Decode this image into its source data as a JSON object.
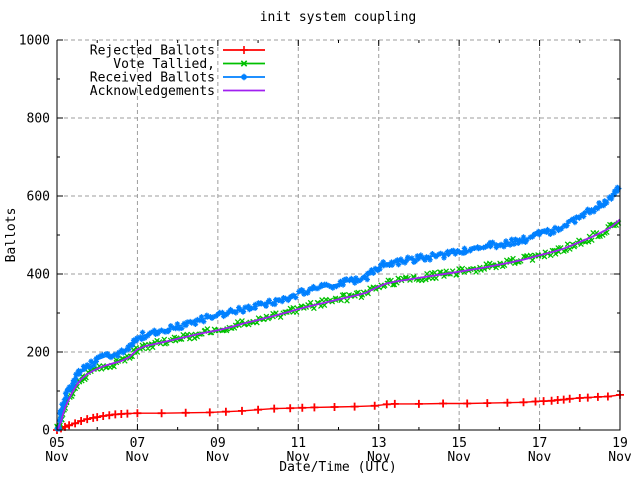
{
  "window": {
    "background": "#ffffff",
    "foreground": "#000000"
  },
  "chart_data": {
    "type": "line",
    "title": "init system coupling",
    "xlabel": "Date/Time (UTC)",
    "ylabel": "Ballots",
    "month": "Nov",
    "xlim_day_of_nov": [
      5,
      19
    ],
    "ylim": [
      0,
      1000
    ],
    "grid": true,
    "grid_color": "#9d9d9d",
    "axis_color": "#000000",
    "legend_position": "top-left-inside",
    "x_major_ticks": [
      {
        "day": 5,
        "label": "05",
        "month": "Nov"
      },
      {
        "day": 7,
        "label": "07",
        "month": "Nov"
      },
      {
        "day": 9,
        "label": "09",
        "month": "Nov"
      },
      {
        "day": 11,
        "label": "11",
        "month": "Nov"
      },
      {
        "day": 13,
        "label": "13",
        "month": "Nov"
      },
      {
        "day": 15,
        "label": "15",
        "month": "Nov"
      },
      {
        "day": 17,
        "label": "17",
        "month": "Nov"
      },
      {
        "day": 19,
        "label": "19",
        "month": "Nov"
      }
    ],
    "x_minor_days": [
      6,
      8,
      10,
      12,
      14,
      16,
      18
    ],
    "y_major_ticks": [
      0,
      200,
      400,
      600,
      800,
      1000
    ],
    "y_minor_ticks": [
      100,
      300,
      500,
      700,
      900
    ],
    "series": [
      {
        "name": "Rejected Ballots",
        "color": "#ff0000",
        "marker": "plus",
        "style": "line-markers",
        "points": [
          [
            5.0,
            0
          ],
          [
            5.1,
            4
          ],
          [
            5.2,
            8
          ],
          [
            5.3,
            12
          ],
          [
            5.45,
            17
          ],
          [
            5.6,
            23
          ],
          [
            5.75,
            28
          ],
          [
            5.9,
            31
          ],
          [
            6.0,
            33
          ],
          [
            6.15,
            36
          ],
          [
            6.3,
            38
          ],
          [
            6.45,
            40
          ],
          [
            6.6,
            41
          ],
          [
            6.75,
            42
          ],
          [
            7.0,
            43
          ],
          [
            7.6,
            43
          ],
          [
            8.2,
            44
          ],
          [
            8.8,
            45
          ],
          [
            9.2,
            47
          ],
          [
            9.6,
            49
          ],
          [
            10.0,
            52
          ],
          [
            10.4,
            55
          ],
          [
            10.8,
            56
          ],
          [
            11.1,
            57
          ],
          [
            11.4,
            58
          ],
          [
            11.9,
            59
          ],
          [
            12.4,
            60
          ],
          [
            12.9,
            62
          ],
          [
            13.2,
            66
          ],
          [
            13.4,
            67
          ],
          [
            14.0,
            67
          ],
          [
            14.6,
            68
          ],
          [
            15.2,
            68
          ],
          [
            15.7,
            69
          ],
          [
            16.2,
            70
          ],
          [
            16.6,
            71
          ],
          [
            16.9,
            73
          ],
          [
            17.1,
            74
          ],
          [
            17.3,
            75
          ],
          [
            17.45,
            77
          ],
          [
            17.6,
            78
          ],
          [
            17.75,
            80
          ],
          [
            18.0,
            82
          ],
          [
            18.2,
            83
          ],
          [
            18.45,
            85
          ],
          [
            18.7,
            86
          ],
          [
            19.0,
            90
          ]
        ]
      },
      {
        "name": "Vote Tallied,",
        "color": "#00c000",
        "marker": "cross",
        "style": "scatter-band",
        "points": [
          [
            5.0,
            0
          ],
          [
            5.05,
            8
          ],
          [
            5.1,
            22
          ],
          [
            5.15,
            40
          ],
          [
            5.2,
            57
          ],
          [
            5.3,
            80
          ],
          [
            5.4,
            100
          ],
          [
            5.5,
            117
          ],
          [
            5.6,
            130
          ],
          [
            5.75,
            143
          ],
          [
            5.9,
            152
          ],
          [
            6.0,
            157
          ],
          [
            6.2,
            165
          ],
          [
            6.4,
            171
          ],
          [
            6.6,
            177
          ],
          [
            6.8,
            187
          ],
          [
            6.9,
            197
          ],
          [
            7.0,
            207
          ],
          [
            7.2,
            215
          ],
          [
            7.5,
            222
          ],
          [
            7.8,
            229
          ],
          [
            8.0,
            234
          ],
          [
            8.3,
            241
          ],
          [
            8.6,
            248
          ],
          [
            9.0,
            256
          ],
          [
            9.3,
            263
          ],
          [
            9.6,
            272
          ],
          [
            10.0,
            282
          ],
          [
            10.3,
            290
          ],
          [
            10.6,
            298
          ],
          [
            11.0,
            310
          ],
          [
            11.3,
            318
          ],
          [
            11.6,
            325
          ],
          [
            12.0,
            335
          ],
          [
            12.3,
            342
          ],
          [
            12.5,
            347
          ],
          [
            12.7,
            352
          ],
          [
            12.8,
            358
          ],
          [
            13.0,
            368
          ],
          [
            13.2,
            376
          ],
          [
            13.5,
            382
          ],
          [
            14.0,
            390
          ],
          [
            14.5,
            398
          ],
          [
            15.0,
            406
          ],
          [
            15.3,
            411
          ],
          [
            15.6,
            416
          ],
          [
            16.0,
            424
          ],
          [
            16.3,
            430
          ],
          [
            16.6,
            437
          ],
          [
            17.0,
            448
          ],
          [
            17.3,
            456
          ],
          [
            17.6,
            465
          ],
          [
            18.0,
            482
          ],
          [
            18.3,
            495
          ],
          [
            18.6,
            510
          ],
          [
            18.8,
            522
          ],
          [
            19.0,
            540
          ]
        ]
      },
      {
        "name": "Received Ballots",
        "color": "#0080ff",
        "marker": "asterisk",
        "style": "scatter-band",
        "points": [
          [
            5.0,
            0
          ],
          [
            5.05,
            15
          ],
          [
            5.1,
            40
          ],
          [
            5.15,
            62
          ],
          [
            5.2,
            80
          ],
          [
            5.3,
            103
          ],
          [
            5.4,
            122
          ],
          [
            5.5,
            140
          ],
          [
            5.6,
            152
          ],
          [
            5.75,
            163
          ],
          [
            5.9,
            173
          ],
          [
            6.0,
            180
          ],
          [
            6.2,
            188
          ],
          [
            6.4,
            194
          ],
          [
            6.6,
            200
          ],
          [
            6.8,
            212
          ],
          [
            6.9,
            225
          ],
          [
            7.0,
            236
          ],
          [
            7.2,
            244
          ],
          [
            7.5,
            252
          ],
          [
            7.8,
            260
          ],
          [
            8.0,
            266
          ],
          [
            8.3,
            275
          ],
          [
            8.6,
            283
          ],
          [
            9.0,
            295
          ],
          [
            9.3,
            302
          ],
          [
            9.6,
            310
          ],
          [
            10.0,
            318
          ],
          [
            10.3,
            326
          ],
          [
            10.6,
            334
          ],
          [
            11.0,
            350
          ],
          [
            11.3,
            358
          ],
          [
            11.6,
            365
          ],
          [
            12.0,
            375
          ],
          [
            12.3,
            382
          ],
          [
            12.5,
            385
          ],
          [
            12.7,
            390
          ],
          [
            12.8,
            405
          ],
          [
            13.0,
            418
          ],
          [
            13.2,
            428
          ],
          [
            13.5,
            432
          ],
          [
            14.0,
            440
          ],
          [
            14.5,
            448
          ],
          [
            15.0,
            456
          ],
          [
            15.3,
            463
          ],
          [
            15.6,
            470
          ],
          [
            16.0,
            477
          ],
          [
            16.3,
            482
          ],
          [
            16.6,
            488
          ],
          [
            17.0,
            502
          ],
          [
            17.3,
            512
          ],
          [
            17.6,
            523
          ],
          [
            18.0,
            548
          ],
          [
            18.3,
            565
          ],
          [
            18.6,
            582
          ],
          [
            18.8,
            597
          ],
          [
            19.0,
            622
          ]
        ]
      },
      {
        "name": "Acknowledgements",
        "color": "#a020f0",
        "marker": "none",
        "style": "line",
        "points": [
          [
            5.0,
            0
          ],
          [
            5.05,
            8
          ],
          [
            5.1,
            22
          ],
          [
            5.15,
            40
          ],
          [
            5.2,
            57
          ],
          [
            5.3,
            80
          ],
          [
            5.4,
            100
          ],
          [
            5.5,
            117
          ],
          [
            5.6,
            130
          ],
          [
            5.75,
            143
          ],
          [
            5.9,
            152
          ],
          [
            6.0,
            157
          ],
          [
            6.2,
            165
          ],
          [
            6.4,
            171
          ],
          [
            6.6,
            177
          ],
          [
            6.8,
            187
          ],
          [
            6.9,
            197
          ],
          [
            7.0,
            207
          ],
          [
            7.2,
            215
          ],
          [
            7.5,
            222
          ],
          [
            7.8,
            229
          ],
          [
            8.0,
            234
          ],
          [
            8.3,
            241
          ],
          [
            8.6,
            248
          ],
          [
            9.0,
            256
          ],
          [
            9.3,
            263
          ],
          [
            9.6,
            272
          ],
          [
            10.0,
            282
          ],
          [
            10.3,
            290
          ],
          [
            10.6,
            298
          ],
          [
            11.0,
            310
          ],
          [
            11.3,
            318
          ],
          [
            11.6,
            325
          ],
          [
            12.0,
            335
          ],
          [
            12.3,
            342
          ],
          [
            12.5,
            347
          ],
          [
            12.7,
            352
          ],
          [
            12.8,
            358
          ],
          [
            13.0,
            368
          ],
          [
            13.2,
            376
          ],
          [
            13.5,
            382
          ],
          [
            14.0,
            390
          ],
          [
            14.5,
            398
          ],
          [
            15.0,
            406
          ],
          [
            15.3,
            411
          ],
          [
            15.6,
            416
          ],
          [
            16.0,
            424
          ],
          [
            16.3,
            430
          ],
          [
            16.6,
            437
          ],
          [
            17.0,
            448
          ],
          [
            17.3,
            456
          ],
          [
            17.6,
            465
          ],
          [
            18.0,
            482
          ],
          [
            18.3,
            495
          ],
          [
            18.6,
            510
          ],
          [
            18.8,
            522
          ],
          [
            19.0,
            540
          ]
        ]
      }
    ]
  }
}
